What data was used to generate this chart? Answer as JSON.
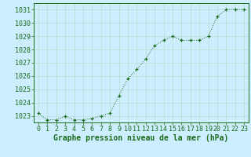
{
  "x": [
    0,
    1,
    2,
    3,
    4,
    5,
    6,
    7,
    8,
    9,
    10,
    11,
    12,
    13,
    14,
    15,
    16,
    17,
    18,
    19,
    20,
    21,
    22,
    23
  ],
  "y": [
    1023.2,
    1022.7,
    1022.7,
    1022.95,
    1022.7,
    1022.7,
    1022.8,
    1023.0,
    1023.2,
    1024.5,
    1025.8,
    1026.5,
    1027.3,
    1028.3,
    1028.7,
    1029.0,
    1028.7,
    1028.7,
    1028.7,
    1029.0,
    1030.5,
    1031.0,
    1031.05,
    1031.0
  ],
  "ylim": [
    1022.5,
    1031.5
  ],
  "yticks": [
    1023,
    1024,
    1025,
    1026,
    1027,
    1028,
    1029,
    1030,
    1031
  ],
  "xticks": [
    0,
    1,
    2,
    3,
    4,
    5,
    6,
    7,
    8,
    9,
    10,
    11,
    12,
    13,
    14,
    15,
    16,
    17,
    18,
    19,
    20,
    21,
    22,
    23
  ],
  "xlabel": "Graphe pression niveau de la mer (hPa)",
  "line_color": "#1a6b1a",
  "marker": "+",
  "background_color": "#cceeff",
  "grid_color": "#b8ddd0",
  "tick_color": "#1a6b1a",
  "axis_color": "#1a6b1a",
  "xlabel_color": "#1a6b1a",
  "xlabel_fontsize": 7.0,
  "tick_fontsize": 6.0
}
